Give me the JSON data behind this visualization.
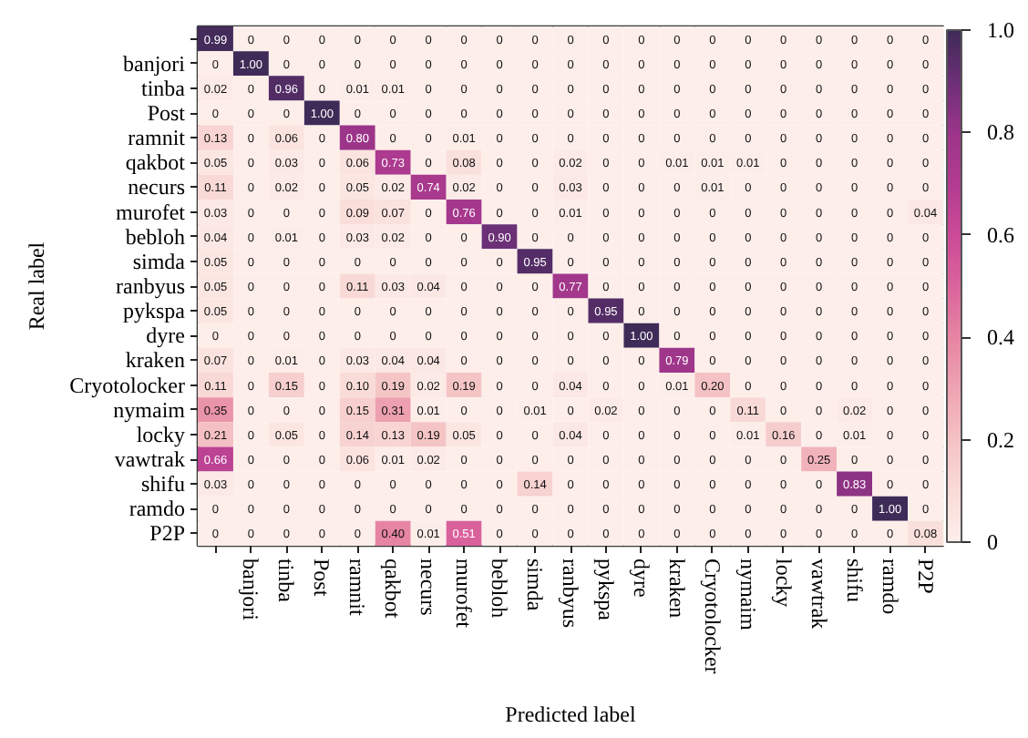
{
  "chart_data": {
    "type": "heatmap",
    "xlabel": "Predicted label",
    "ylabel": "Real label",
    "categories": [
      null,
      "banjori",
      "tinba",
      "Post",
      "ramnit",
      "qakbot",
      "necurs",
      "murofet",
      "bebloh",
      "simda",
      "ranbyus",
      "pykspa",
      "dyre",
      "kraken",
      "Cryotolocker",
      "nymaim",
      "locky",
      "vawtrak",
      "shifu",
      "ramdo",
      "P2P"
    ],
    "y_categories": [
      null,
      "banjori",
      "tinba",
      "Post",
      "ramnit",
      "qakbot",
      "necurs",
      "murofet",
      "bebloh",
      "simda",
      "ranbyus",
      "pykspa",
      "dyre",
      "kraken",
      "Cryotolocker",
      "nymaim",
      "locky",
      "vawtrak",
      "shifu",
      "ramdo",
      "P2P"
    ],
    "cells": [
      [
        0.99,
        0,
        0,
        0,
        0,
        0,
        0,
        0,
        0,
        0,
        0,
        0,
        0,
        0,
        0,
        0,
        0,
        0,
        0,
        0,
        0
      ],
      [
        0,
        1.0,
        0,
        0,
        0,
        0,
        0,
        0,
        0,
        0,
        0,
        0,
        0,
        0,
        0,
        0,
        0,
        0,
        0,
        0,
        0
      ],
      [
        0.02,
        0,
        0.96,
        0,
        0.01,
        0.01,
        0,
        0,
        0,
        0,
        0,
        0,
        0,
        0,
        0,
        0,
        0,
        0,
        0,
        0,
        0
      ],
      [
        0,
        0,
        0,
        1.0,
        0,
        0,
        0,
        0,
        0,
        0,
        0,
        0,
        0,
        0,
        0,
        0,
        0,
        0,
        0,
        0,
        0
      ],
      [
        0.13,
        0,
        0.06,
        0,
        0.8,
        0,
        0,
        0.01,
        0,
        0,
        0,
        0,
        0,
        0,
        0,
        0,
        0,
        0,
        0,
        0,
        0
      ],
      [
        0.05,
        0,
        0.03,
        0,
        0.06,
        0.73,
        0,
        0.08,
        0,
        0,
        0.02,
        0,
        0,
        0.01,
        0.01,
        0.01,
        0,
        0,
        0,
        0,
        0
      ],
      [
        0.11,
        0,
        0.02,
        0,
        0.05,
        0.02,
        0.74,
        0.02,
        0,
        0,
        0.03,
        0,
        0,
        0,
        0.01,
        0,
        0,
        0,
        0,
        0,
        0
      ],
      [
        0.03,
        0,
        0,
        0,
        0.09,
        0.07,
        0,
        0.76,
        0,
        0,
        0.01,
        0,
        0,
        0,
        0,
        0,
        0,
        0,
        0,
        0,
        0.04
      ],
      [
        0.04,
        0,
        0.01,
        0,
        0.03,
        0.02,
        0,
        0,
        0.9,
        0,
        0,
        0,
        0,
        0,
        0,
        0,
        0,
        0,
        0,
        0,
        0
      ],
      [
        0.05,
        0,
        0,
        0,
        0,
        0,
        0,
        0,
        0,
        0.95,
        0,
        0,
        0,
        0,
        0,
        0,
        0,
        0,
        0,
        0,
        0
      ],
      [
        0.05,
        0,
        0,
        0,
        0.11,
        0.03,
        0.04,
        0,
        0,
        0,
        0.77,
        0,
        0,
        0,
        0,
        0,
        0,
        0,
        0,
        0,
        0
      ],
      [
        0.05,
        0,
        0,
        0,
        0,
        0,
        0,
        0,
        0,
        0,
        0,
        0.95,
        0,
        0,
        0,
        0,
        0,
        0,
        0,
        0,
        0
      ],
      [
        0,
        0,
        0,
        0,
        0,
        0,
        0,
        0,
        0,
        0,
        0,
        0,
        1.0,
        0,
        0,
        0,
        0,
        0,
        0,
        0,
        0
      ],
      [
        0.07,
        0,
        0.01,
        0,
        0.03,
        0.04,
        0.04,
        0,
        0,
        0,
        0,
        0,
        0,
        0.79,
        0,
        0,
        0,
        0,
        0,
        0,
        0
      ],
      [
        0.11,
        0,
        0.15,
        0,
        0.1,
        0.19,
        0.02,
        0.19,
        0,
        0,
        0.04,
        0,
        0,
        0.01,
        0.2,
        0,
        0,
        0,
        0,
        0,
        0
      ],
      [
        0.35,
        0,
        0,
        0,
        0.15,
        0.31,
        0.01,
        0,
        0,
        0.01,
        0,
        0.02,
        0,
        0,
        0,
        0.11,
        0,
        0,
        0.02,
        0,
        0
      ],
      [
        0.21,
        0,
        0.05,
        0,
        0.14,
        0.13,
        0.19,
        0.05,
        0,
        0,
        0.04,
        0,
        0,
        0,
        0,
        0.01,
        0.16,
        0,
        0.01,
        0,
        0
      ],
      [
        0.66,
        0,
        0,
        0,
        0.06,
        0.01,
        0.02,
        0,
        0,
        0,
        0,
        0,
        0,
        0,
        0,
        0,
        0,
        0.25,
        0,
        0,
        0
      ],
      [
        0.03,
        0,
        0,
        0,
        0,
        0,
        0,
        0,
        0,
        0.14,
        0,
        0,
        0,
        0,
        0,
        0,
        0,
        0,
        0.83,
        0,
        0
      ],
      [
        0,
        0,
        0,
        0,
        0,
        0,
        0,
        0,
        0,
        0,
        0,
        0,
        0,
        0,
        0,
        0,
        0,
        0,
        0,
        1.0,
        0
      ],
      [
        0,
        0,
        0,
        0,
        0,
        0.4,
        0.01,
        0.51,
        0,
        0,
        0,
        0,
        0,
        0,
        0,
        0,
        0,
        0,
        0,
        0,
        0.08
      ]
    ],
    "cell_labels": [
      [
        "0.99",
        "0",
        "0",
        "0",
        "0",
        "0",
        "0",
        "0",
        "0",
        "0",
        "0",
        "0",
        "0",
        "0",
        "0",
        "0",
        "0",
        "0",
        "0",
        "0",
        "0"
      ],
      [
        "0",
        "1.00",
        "0",
        "0",
        "0",
        "0",
        "0",
        "0",
        "0",
        "0",
        "0",
        "0",
        "0",
        "0",
        "0",
        "0",
        "0",
        "0",
        "0",
        "0",
        "0"
      ],
      [
        "0.02",
        "0",
        "0.96",
        "0",
        "0.01",
        "0.01",
        "0",
        "0",
        "0",
        "0",
        "0",
        "0",
        "0",
        "0",
        "0",
        "0",
        "0",
        "0",
        "0",
        "0",
        "0"
      ],
      [
        "0",
        "0",
        "0",
        "1.00",
        "0",
        "0",
        "0",
        "0",
        "0",
        "0",
        "0",
        "0",
        "0",
        "0",
        "0",
        "0",
        "0",
        "0",
        "0",
        "0",
        "0"
      ],
      [
        "0.13",
        "0",
        "0.06",
        "0",
        "0.80",
        "0",
        "0",
        "0.01",
        "0",
        "0",
        "0",
        "0",
        "0",
        "0",
        "0",
        "0",
        "0",
        "0",
        "0",
        "0",
        "0"
      ],
      [
        "0.05",
        "0",
        "0.03",
        "0",
        "0.06",
        "0.73",
        "0",
        "0.08",
        "0",
        "0",
        "0.02",
        "0",
        "0",
        "0.01",
        "0.01",
        "0.01",
        "0",
        "0",
        "0",
        "0",
        "0"
      ],
      [
        "0.11",
        "0",
        "0.02",
        "0",
        "0.05",
        "0.02",
        "0.74",
        "0.02",
        "0",
        "0",
        "0.03",
        "0",
        "0",
        "0",
        "0.01",
        "0",
        "0",
        "0",
        "0",
        "0",
        "0"
      ],
      [
        "0.03",
        "0",
        "0",
        "0",
        "0.09",
        "0.07",
        "0",
        "0.76",
        "0",
        "0",
        "0.01",
        "0",
        "0",
        "0",
        "0",
        "0",
        "0",
        "0",
        "0",
        "0",
        "0.04"
      ],
      [
        "0.04",
        "0",
        "0.01",
        "0",
        "0.03",
        "0.02",
        "0",
        "0",
        "0.90",
        "0",
        "0",
        "0",
        "0",
        "0",
        "0",
        "0",
        "0",
        "0",
        "0",
        "0",
        "0"
      ],
      [
        "0.05",
        "0",
        "0",
        "0",
        "0",
        "0",
        "0",
        "0",
        "0",
        "0.95",
        "0",
        "0",
        "0",
        "0",
        "0",
        "0",
        "0",
        "0",
        "0",
        "0",
        "0"
      ],
      [
        "0.05",
        "0",
        "0",
        "0",
        "0.11",
        "0.03",
        "0.04",
        "0",
        "0",
        "0",
        "0.77",
        "0",
        "0",
        "0",
        "0",
        "0",
        "0",
        "0",
        "0",
        "0",
        "0"
      ],
      [
        "0.05",
        "0",
        "0",
        "0",
        "0",
        "0",
        "0",
        "0",
        "0",
        "0",
        "0",
        "0.95",
        "0",
        "0",
        "0",
        "0",
        "0",
        "0",
        "0",
        "0",
        "0"
      ],
      [
        "0",
        "0",
        "0",
        "0",
        "0",
        "0",
        "0",
        "0",
        "0",
        "0",
        "0",
        "0",
        "1.00",
        "0",
        "0",
        "0",
        "0",
        "0",
        "0",
        "0",
        "0"
      ],
      [
        "0.07",
        "0",
        "0.01",
        "0",
        "0.03",
        "0.04",
        "0.04",
        "0",
        "0",
        "0",
        "0",
        "0",
        "0",
        "0.79",
        "0",
        "0",
        "0",
        "0",
        "0",
        "0",
        "0"
      ],
      [
        "0.11",
        "0",
        "0.15",
        "0",
        "0.10",
        "0.19",
        "0.02",
        "0.19",
        "0",
        "0",
        "0.04",
        "0",
        "0",
        "0.01",
        "0.20",
        "0",
        "0",
        "0",
        "0",
        "0",
        "0"
      ],
      [
        "0.35",
        "0",
        "0",
        "0",
        "0.15",
        "0.31",
        "0.01",
        "0",
        "0",
        "0.01",
        "0",
        "0.02",
        "0",
        "0",
        "0",
        "0.11",
        "0",
        "0",
        "0.02",
        "0",
        "0"
      ],
      [
        "0.21",
        "0",
        "0.05",
        "0",
        "0.14",
        "0.13",
        "0.19",
        "0.05",
        "0",
        "0",
        "0.04",
        "0",
        "0",
        "0",
        "0",
        "0.01",
        "0.16",
        "0",
        "0.01",
        "0",
        "0"
      ],
      [
        "0.66",
        "0",
        "0",
        "0",
        "0.06",
        "0.01",
        "0.02",
        "0",
        "0",
        "0",
        "0",
        "0",
        "0",
        "0",
        "0",
        "0",
        "0",
        "0.25",
        "0",
        "0",
        "0"
      ],
      [
        "0.03",
        "0",
        "0",
        "0",
        "0",
        "0",
        "0",
        "0",
        "0",
        "0.14",
        "0",
        "0",
        "0",
        "0",
        "0",
        "0",
        "0",
        "0",
        "0.83",
        "0",
        "0"
      ],
      [
        "0",
        "0",
        "0",
        "0",
        "0",
        "0",
        "0",
        "0",
        "0",
        "0",
        "0",
        "0",
        "0",
        "0",
        "0",
        "0",
        "0",
        "0",
        "0",
        "1.00",
        "0"
      ],
      [
        "0",
        "0",
        "0",
        "0",
        "0",
        "0.40",
        "0.01",
        "0.51",
        "0",
        "0",
        "0",
        "0",
        "0",
        "0",
        "0",
        "0",
        "0",
        "0",
        "0",
        "0",
        "0.08"
      ]
    ],
    "clim": [
      0,
      1
    ],
    "cticks": [
      0,
      0.2,
      0.4,
      0.6,
      0.8,
      {
        "value": 1,
        "label": "1.0"
      }
    ]
  }
}
